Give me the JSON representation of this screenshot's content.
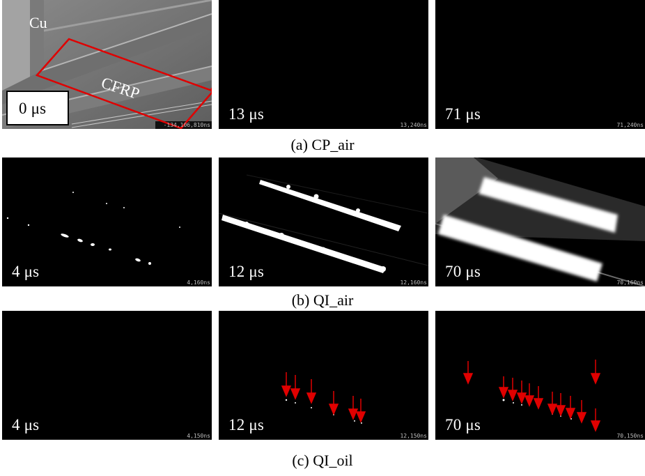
{
  "rows": [
    {
      "caption": "(a) CP_air",
      "panels": [
        {
          "time": "0 μs",
          "stamp": "-134,106,810ns",
          "material_labels": [
            "Cu",
            "CFRP"
          ]
        },
        {
          "time": "13 μs",
          "stamp": "13,240ns"
        },
        {
          "time": "71 μs",
          "stamp": "71,240ns"
        }
      ]
    },
    {
      "caption": "(b) QI_air",
      "panels": [
        {
          "time": "4 μs",
          "stamp": "4,160ns"
        },
        {
          "time": "12 μs",
          "stamp": "12,160ns"
        },
        {
          "time": "70 μs",
          "stamp": "70,160ns"
        }
      ]
    },
    {
      "caption": "(c) QI_oil",
      "panels": [
        {
          "time": "4 μs",
          "stamp": "4,150ns"
        },
        {
          "time": "12 μs",
          "stamp": "12,150ns"
        },
        {
          "time": "70 μs",
          "stamp": "70,150ns"
        }
      ]
    }
  ],
  "colors": {
    "highlight_box": "#e00000",
    "arrow": "#e00000",
    "background": "#000000"
  }
}
